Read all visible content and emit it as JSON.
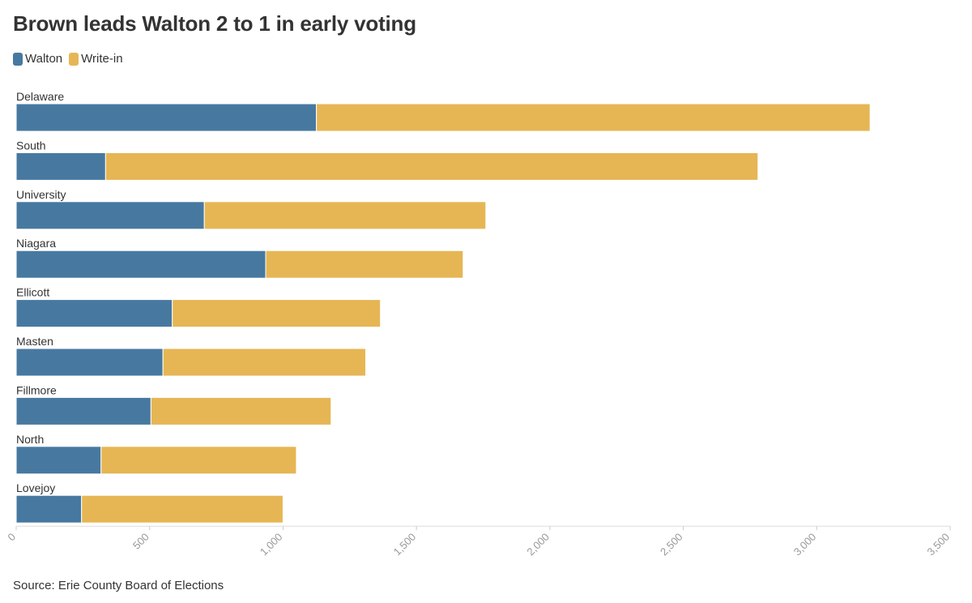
{
  "chart_data": {
    "type": "bar",
    "orientation": "horizontal",
    "stacked": true,
    "title": "Brown leads Walton 2 to 1 in early voting",
    "categories": [
      "Delaware",
      "South",
      "University",
      "Niagara",
      "Ellicott",
      "Masten",
      "Fillmore",
      "North",
      "Lovejoy"
    ],
    "series": [
      {
        "name": "Walton",
        "color": "#4779a0",
        "values": [
          1125,
          335,
          705,
          935,
          585,
          550,
          505,
          318,
          245
        ]
      },
      {
        "name": "Write-in",
        "color": "#e6b654",
        "values": [
          2075,
          2445,
          1055,
          740,
          780,
          760,
          675,
          732,
          755
        ]
      }
    ],
    "xlim": [
      0,
      3500
    ],
    "xticks": [
      "0",
      "500",
      "1,000",
      "1,500",
      "2,000",
      "2,500",
      "3,000",
      "3,500"
    ],
    "xtick_values": [
      0,
      500,
      1000,
      1500,
      2000,
      2500,
      3000,
      3500
    ],
    "legend_position": "top-left",
    "grid": false,
    "source": "Source: Erie County Board of Elections"
  }
}
